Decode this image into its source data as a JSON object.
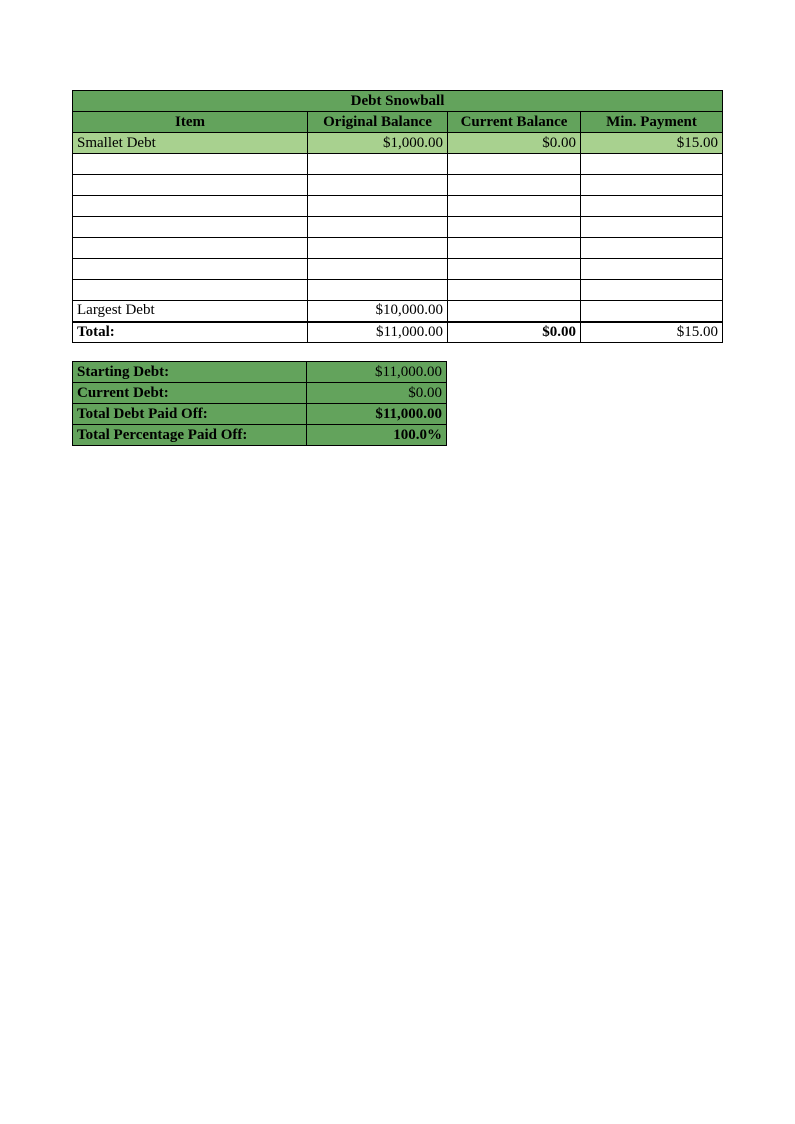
{
  "colors": {
    "header_green": "#63a35c",
    "light_green": "#a8d18f",
    "white": "#ffffff",
    "border": "#000000"
  },
  "main_table": {
    "title": "Debt Snowball",
    "columns": {
      "item": "Item",
      "original": "Original Balance",
      "current": "Current Balance",
      "min": "Min. Payment"
    },
    "data_row": {
      "item": "Smallet Debt",
      "original": "$1,000.00",
      "current": "$0.00",
      "min": "$15.00"
    },
    "empty_rows": 7,
    "largest_row": {
      "item": "Largest Debt",
      "original": "$10,000.00",
      "current": "",
      "min": ""
    },
    "total_row": {
      "item": "Total:",
      "original": "$11,000.00",
      "current": "$0.00",
      "min": "$15.00"
    }
  },
  "summary": {
    "rows": [
      {
        "label": "Starting Debt:",
        "value": "$11,000.00",
        "bold_value": false
      },
      {
        "label": "Current Debt:",
        "value": "$0.00",
        "bold_value": false
      },
      {
        "label": "Total Debt Paid Off:",
        "value": "$11,000.00",
        "bold_value": true
      },
      {
        "label": "Total Percentage Paid Off:",
        "value": "100.0%",
        "bold_value": true
      }
    ]
  }
}
